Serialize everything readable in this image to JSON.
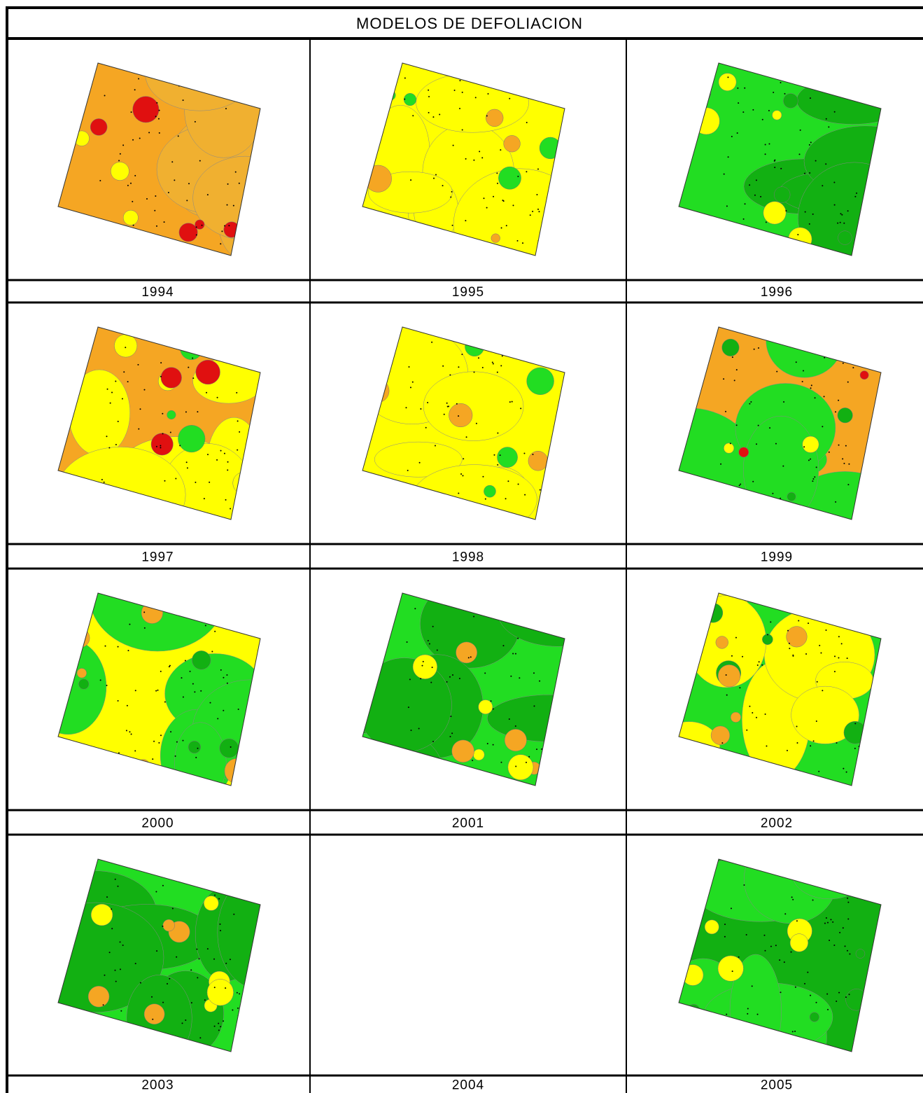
{
  "header": {
    "title": "MODELOS DE DEFOLIACION"
  },
  "table": {
    "rows": [
      [
        "1994",
        "1995",
        "1996"
      ],
      [
        "1997",
        "1998",
        "1999"
      ],
      [
        "2000",
        "2001",
        "2002"
      ],
      [
        "2003",
        "2004",
        "2005"
      ]
    ]
  }
}
